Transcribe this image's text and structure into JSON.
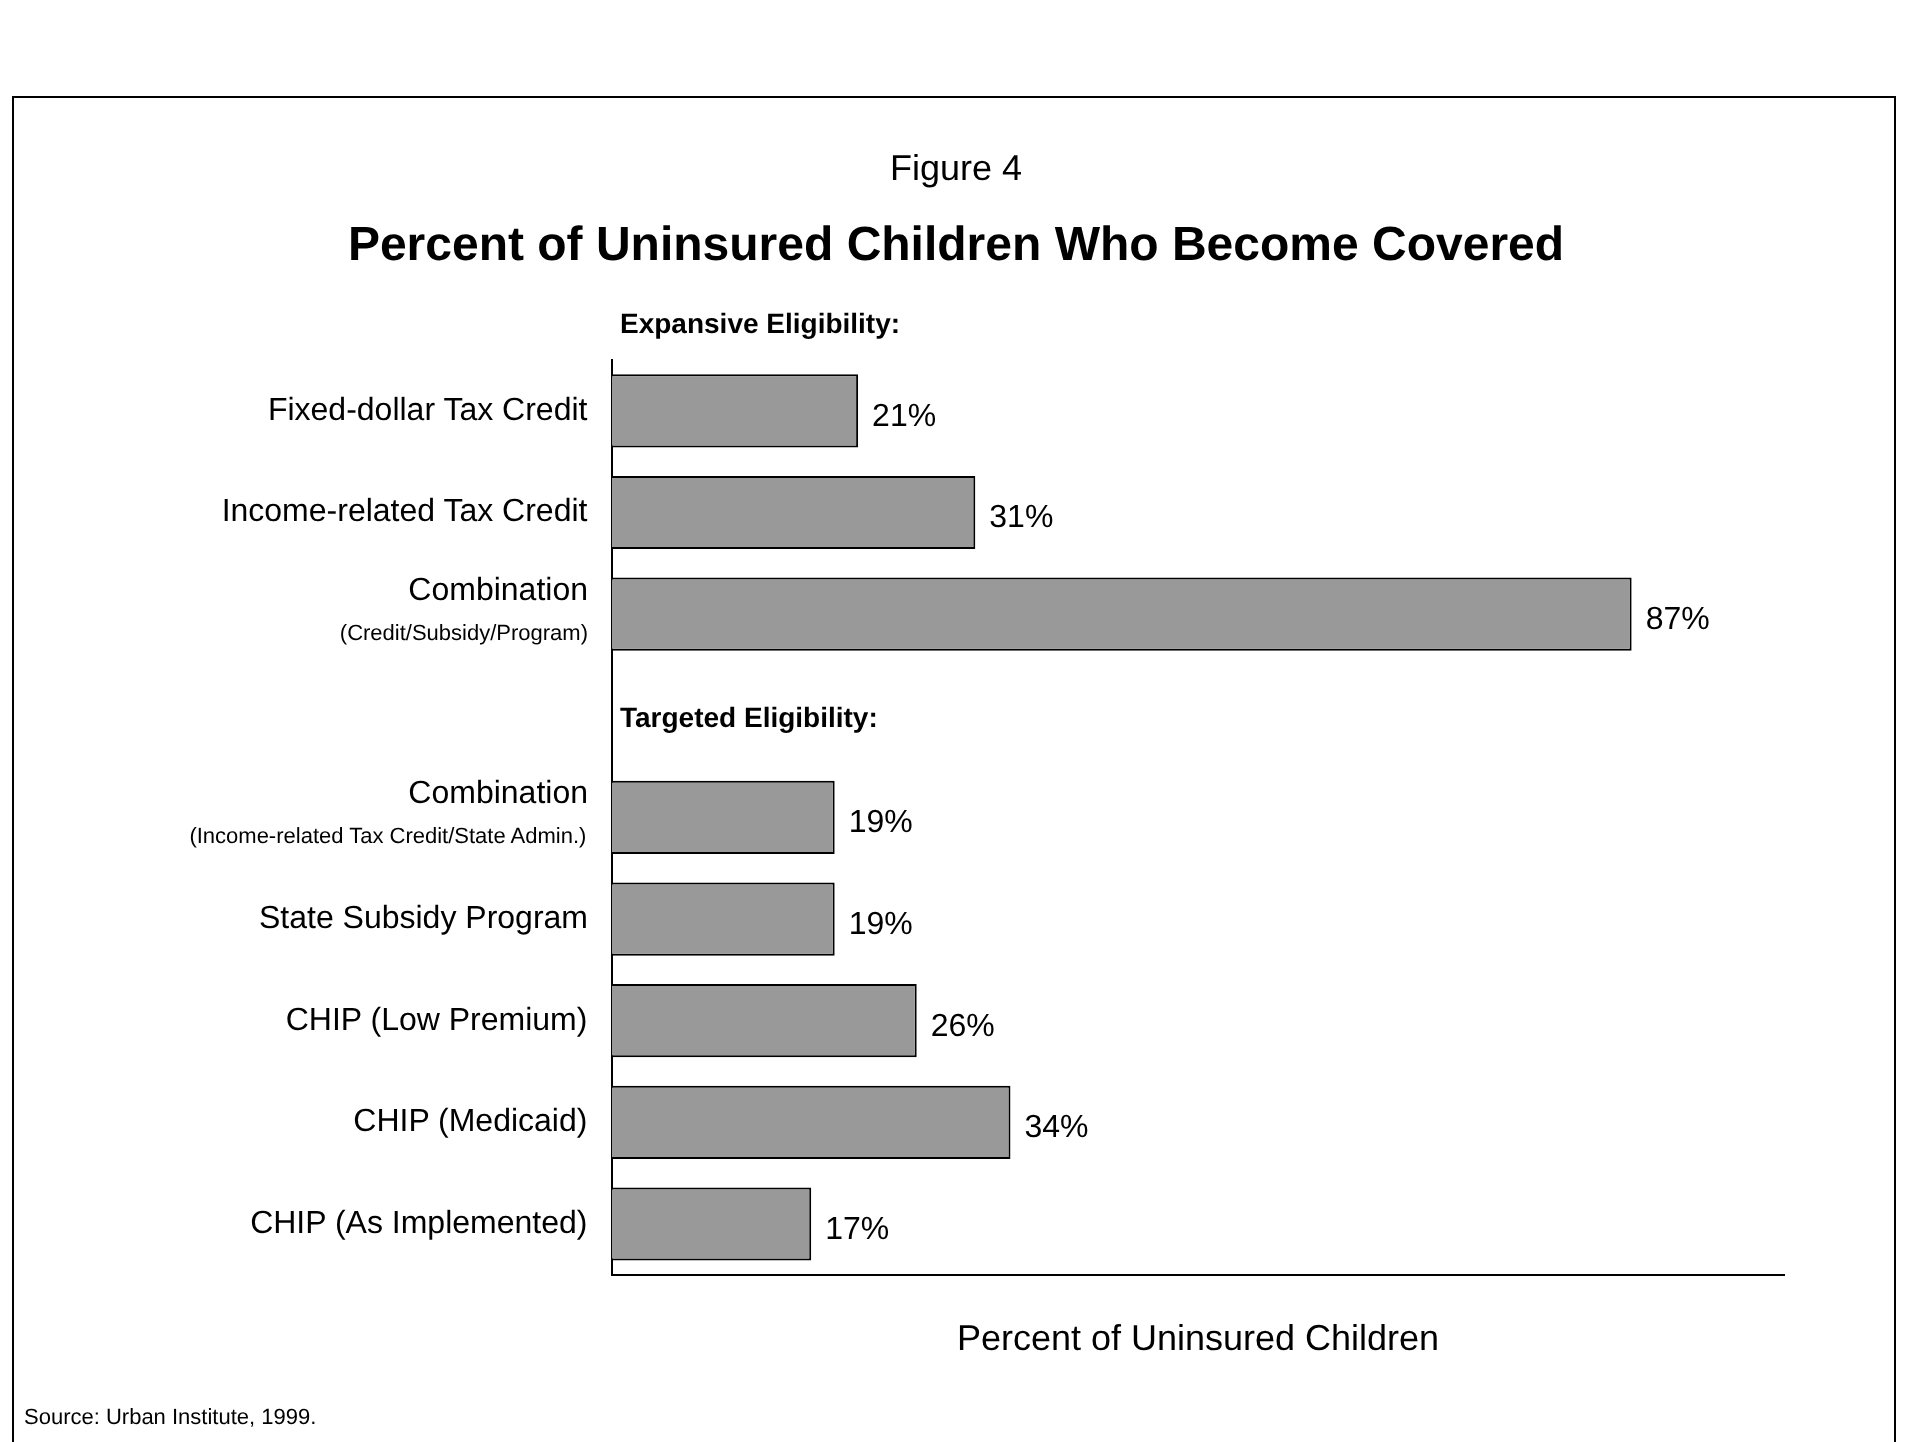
{
  "chart_data": {
    "type": "bar",
    "orientation": "horizontal",
    "subtitle": "Figure 4",
    "title": "Percent of Uninsured Children Who Become Covered",
    "xlabel": "Percent of Uninsured Children",
    "categories": [
      "Fixed-dollar Tax Credit",
      "Income-related Tax Credit",
      "Combination\n(Credit/Subsidy/Program)",
      null,
      "Combination\n(Income-related Tax Credit/State Admin.)",
      "State Subsidy Program",
      "CHIP (Low Premium)",
      "CHIP (Medicaid)",
      "CHIP (As Implemented)"
    ],
    "values": [
      21,
      31,
      87,
      null,
      19,
      19,
      26,
      34,
      17
    ],
    "value_labels": [
      "21%",
      "31%",
      "87%",
      null,
      "19%",
      "19%",
      "26%",
      "34%",
      "17%"
    ],
    "color": "#999999",
    "xlim": [
      0,
      100
    ],
    "tick_labels": "y",
    "grid": false,
    "legend": false,
    "annotations": [
      "Expansive Eligibility:",
      "Targeted Eligibility:",
      "Source: Urban Institute, 1999."
    ]
  }
}
